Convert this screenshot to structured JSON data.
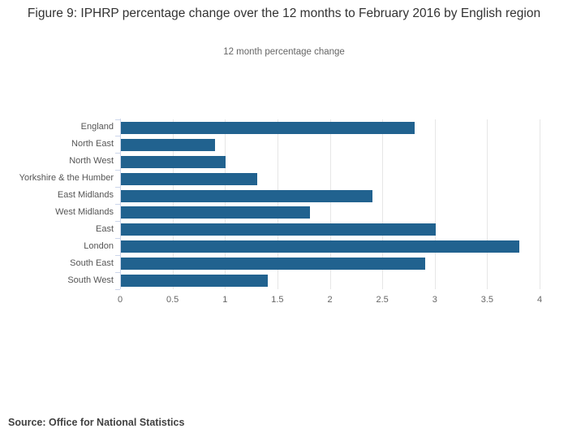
{
  "title": "Figure 9: IPHRP percentage change over the 12 months to February 2016 by English region",
  "subtitle": "12 month percentage change",
  "source": "Source: Office for National Statistics",
  "chart_data": {
    "type": "bar",
    "orientation": "horizontal",
    "title": "Figure 9: IPHRP percentage change over the 12 months to February 2016 by English region",
    "subtitle": "12 month percentage change",
    "categories": [
      "England",
      "North East",
      "North West",
      "Yorkshire & the Humber",
      "East Midlands",
      "West Midlands",
      "East",
      "London",
      "South East",
      "South West"
    ],
    "values": [
      2.8,
      0.9,
      1.0,
      1.3,
      2.4,
      1.8,
      3.0,
      3.8,
      2.9,
      1.4
    ],
    "xlabel": "",
    "ylabel": "",
    "xlim": [
      0,
      4
    ],
    "xticks": [
      0,
      0.5,
      1,
      1.5,
      2,
      2.5,
      3,
      3.5,
      4
    ],
    "grid": true,
    "legend": "none",
    "bar_color": "#21628f",
    "grid_color": "#e6e6e6",
    "axis_line_color": "#ccd6eb"
  }
}
